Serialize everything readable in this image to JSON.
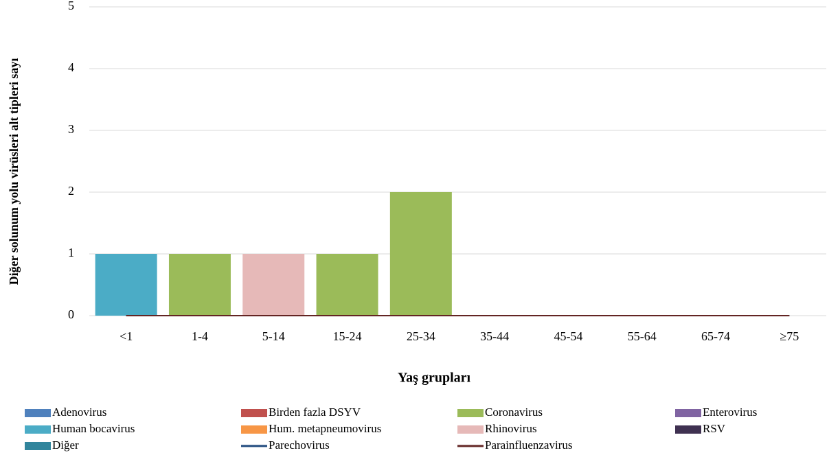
{
  "chart_data": {
    "type": "bar",
    "stacked": true,
    "x_label": "Yaş grupları",
    "y_label": "Diğer solunum yolu virüsleri alt tipleri sayı",
    "categories": [
      "<1",
      "1-4",
      "5-14",
      "15-24",
      "25-34",
      "35-44",
      "45-54",
      "55-64",
      "65-74",
      "≥75"
    ],
    "ylim": [
      0,
      5
    ],
    "yticks": [
      0,
      1,
      2,
      3,
      4,
      5
    ],
    "grid": true,
    "series": [
      {
        "name": "Adenovirus",
        "color": "#4f81bd",
        "style": "bar",
        "values": [
          0,
          0,
          0,
          0,
          0,
          0,
          0,
          0,
          0,
          0
        ]
      },
      {
        "name": "Birden fazla DSYV",
        "color": "#c0504d",
        "style": "bar",
        "values": [
          0,
          0,
          0,
          0,
          0,
          0,
          0,
          0,
          0,
          0
        ]
      },
      {
        "name": "Coronavirus",
        "color": "#9bbb59",
        "style": "bar",
        "values": [
          0,
          1,
          0,
          1,
          2,
          0,
          0,
          0,
          0,
          0
        ]
      },
      {
        "name": "Enterovirus",
        "color": "#8064a2",
        "style": "bar",
        "values": [
          0,
          0,
          0,
          0,
          0,
          0,
          0,
          0,
          0,
          0
        ]
      },
      {
        "name": "Human bocavirus",
        "color": "#4bacc6",
        "style": "bar",
        "values": [
          1,
          0,
          0,
          0,
          0,
          0,
          0,
          0,
          0,
          0
        ]
      },
      {
        "name": "Hum. metapneumovirus",
        "color": "#f79646",
        "style": "bar",
        "values": [
          0,
          0,
          0,
          0,
          0,
          0,
          0,
          0,
          0,
          0
        ]
      },
      {
        "name": "Rhinovirus",
        "color": "#e6b9b8",
        "style": "bar",
        "values": [
          0,
          0,
          1,
          0,
          0,
          0,
          0,
          0,
          0,
          0
        ]
      },
      {
        "name": "RSV",
        "color": "#3f3151",
        "style": "bar",
        "values": [
          0,
          0,
          0,
          0,
          0,
          0,
          0,
          0,
          0,
          0
        ]
      },
      {
        "name": "Diğer",
        "color": "#31859c",
        "style": "bar",
        "values": [
          0,
          0,
          0,
          0,
          0,
          0,
          0,
          0,
          0,
          0
        ]
      },
      {
        "name": "Parechovirus",
        "color": "#1f497d",
        "style": "line",
        "values": [
          0,
          0,
          0,
          0,
          0,
          0,
          0,
          0,
          0,
          0
        ]
      },
      {
        "name": "Parainfluenzavirus",
        "color": "#632523",
        "style": "line",
        "values": [
          0,
          0,
          0,
          0,
          0,
          0,
          0,
          0,
          0,
          0
        ]
      }
    ]
  }
}
